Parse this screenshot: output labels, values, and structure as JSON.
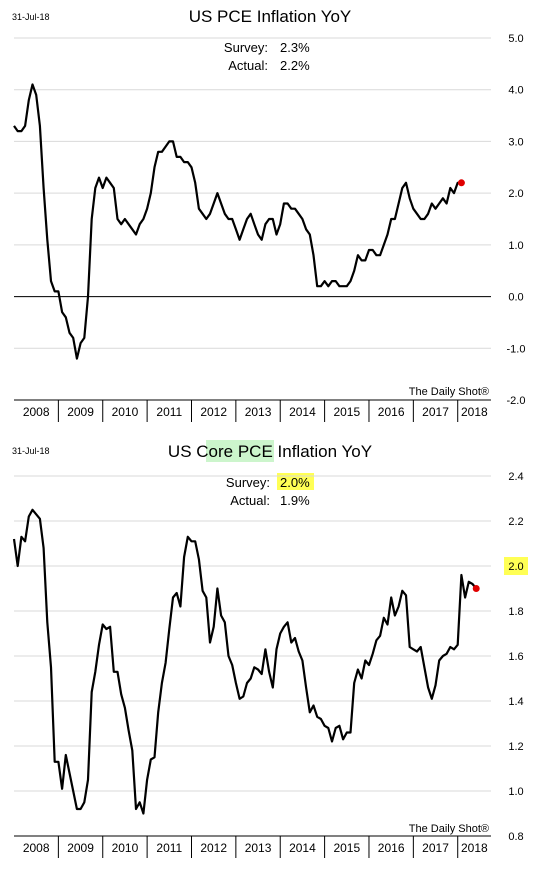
{
  "chart_data": [
    {
      "type": "line",
      "date_label": "31-Jul-18",
      "title": "US PCE Inflation YoY",
      "title_highlight": "",
      "annotations": {
        "survey_label": "Survey:",
        "survey_value": "2.3%",
        "actual_label": "Actual:",
        "actual_value": "2.2%"
      },
      "source": "The Daily Shot®",
      "ylim": [
        -2.0,
        5.0
      ],
      "y_ticks": [
        {
          "value": -2,
          "label": "-2.0"
        },
        {
          "value": -1,
          "label": "-1.0"
        },
        {
          "value": 0,
          "label": "0.0"
        },
        {
          "value": 1,
          "label": "1.0"
        },
        {
          "value": 2,
          "label": "2.0"
        },
        {
          "value": 3,
          "label": "3.0"
        },
        {
          "value": 4,
          "label": "4.0"
        },
        {
          "value": 5,
          "label": "5.0"
        }
      ],
      "zero_line": true,
      "x_range": [
        2008.0,
        2018.75
      ],
      "x_ticks": [
        "2008",
        "2009",
        "2010",
        "2011",
        "2012",
        "2013",
        "2014",
        "2015",
        "2016",
        "2017",
        "2018"
      ],
      "x_start": 2008.0,
      "points_per_year": 12,
      "values": [
        3.3,
        3.2,
        3.2,
        3.3,
        3.8,
        4.1,
        3.9,
        3.3,
        2.1,
        1.1,
        0.3,
        0.1,
        0.1,
        -0.3,
        -0.4,
        -0.7,
        -0.8,
        -1.2,
        -0.9,
        -0.8,
        0.0,
        1.5,
        2.1,
        2.3,
        2.1,
        2.3,
        2.2,
        2.1,
        1.5,
        1.4,
        1.5,
        1.4,
        1.3,
        1.2,
        1.4,
        1.5,
        1.7,
        2.0,
        2.5,
        2.8,
        2.8,
        2.9,
        3.0,
        3.0,
        2.7,
        2.7,
        2.6,
        2.6,
        2.5,
        2.2,
        1.7,
        1.6,
        1.5,
        1.6,
        1.8,
        2.0,
        1.8,
        1.6,
        1.5,
        1.5,
        1.3,
        1.1,
        1.3,
        1.5,
        1.6,
        1.4,
        1.2,
        1.1,
        1.4,
        1.5,
        1.5,
        1.2,
        1.4,
        1.8,
        1.8,
        1.7,
        1.7,
        1.6,
        1.5,
        1.3,
        1.2,
        0.8,
        0.2,
        0.2,
        0.3,
        0.2,
        0.3,
        0.3,
        0.2,
        0.2,
        0.2,
        0.3,
        0.5,
        0.8,
        0.7,
        0.7,
        0.9,
        0.9,
        0.8,
        0.8,
        1.0,
        1.2,
        1.5,
        1.5,
        1.8,
        2.1,
        2.2,
        1.9,
        1.7,
        1.6,
        1.5,
        1.5,
        1.6,
        1.8,
        1.7,
        1.8,
        1.9,
        1.8,
        2.1,
        2.0,
        2.2,
        2.2
      ],
      "last_marker": true,
      "highlight_tick": null
    },
    {
      "type": "line",
      "date_label": "31-Jul-18",
      "title_prefix": "US ",
      "title_highlight": "Core PCE",
      "title_suffix": " Inflation YoY",
      "annotations": {
        "survey_label": "Survey:",
        "survey_value": "2.0%",
        "actual_label": "Actual:",
        "actual_value": "1.9%"
      },
      "source": "The Daily Shot®",
      "ylim": [
        0.8,
        2.4
      ],
      "y_ticks": [
        {
          "value": 0.8,
          "label": "0.8"
        },
        {
          "value": 1.0,
          "label": "1.0"
        },
        {
          "value": 1.2,
          "label": "1.2"
        },
        {
          "value": 1.4,
          "label": "1.4"
        },
        {
          "value": 1.6,
          "label": "1.6"
        },
        {
          "value": 1.8,
          "label": "1.8"
        },
        {
          "value": 2.0,
          "label": "2.0"
        },
        {
          "value": 2.2,
          "label": "2.2"
        },
        {
          "value": 2.4,
          "label": "2.4"
        }
      ],
      "zero_line": false,
      "x_range": [
        2008.0,
        2018.75
      ],
      "x_ticks": [
        "2008",
        "2009",
        "2010",
        "2011",
        "2012",
        "2013",
        "2014",
        "2015",
        "2016",
        "2017",
        "2018"
      ],
      "x_start": 2008.0,
      "points_per_year": 12,
      "values": [
        2.12,
        2.0,
        2.13,
        2.11,
        2.22,
        2.25,
        2.23,
        2.21,
        2.08,
        1.75,
        1.55,
        1.13,
        1.13,
        1.01,
        1.16,
        1.08,
        1.0,
        0.92,
        0.92,
        0.95,
        1.05,
        1.44,
        1.53,
        1.65,
        1.74,
        1.72,
        1.73,
        1.53,
        1.53,
        1.43,
        1.37,
        1.27,
        1.18,
        0.92,
        0.95,
        0.9,
        1.05,
        1.14,
        1.15,
        1.35,
        1.48,
        1.57,
        1.72,
        1.86,
        1.88,
        1.82,
        2.04,
        2.13,
        2.11,
        2.11,
        2.03,
        1.89,
        1.86,
        1.66,
        1.73,
        1.9,
        1.78,
        1.75,
        1.6,
        1.56,
        1.48,
        1.41,
        1.42,
        1.48,
        1.5,
        1.55,
        1.54,
        1.52,
        1.63,
        1.53,
        1.46,
        1.63,
        1.7,
        1.73,
        1.75,
        1.66,
        1.68,
        1.62,
        1.58,
        1.46,
        1.35,
        1.38,
        1.33,
        1.32,
        1.29,
        1.28,
        1.22,
        1.28,
        1.29,
        1.23,
        1.26,
        1.26,
        1.48,
        1.54,
        1.5,
        1.58,
        1.56,
        1.61,
        1.67,
        1.69,
        1.77,
        1.74,
        1.86,
        1.78,
        1.82,
        1.89,
        1.87,
        1.64,
        1.63,
        1.62,
        1.64,
        1.55,
        1.46,
        1.41,
        1.47,
        1.58,
        1.6,
        1.61,
        1.64,
        1.63,
        1.65,
        1.96,
        1.86,
        1.93,
        1.92,
        1.9
      ],
      "last_marker": true,
      "highlight_tick": "2.0"
    }
  ]
}
